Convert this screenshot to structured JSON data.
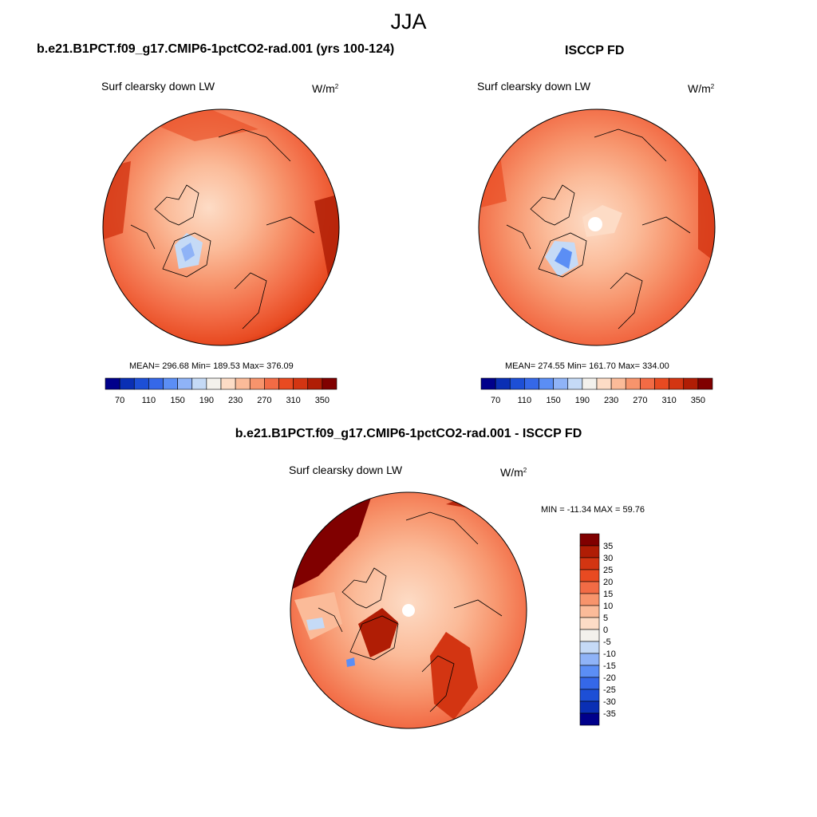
{
  "figure": {
    "season": "JJA",
    "variable": "Surf clearsky down LW",
    "units_base": "W/m",
    "units_exp": "2"
  },
  "panels": [
    {
      "title": "b.e21.B1PCT.f09_g17.CMIP6-1pctCO2-rad.001 (yrs 100-124)",
      "stats": "MEAN= 296.68  Min= 189.53  Max= 376.09",
      "mean": 296.68,
      "min": 189.53,
      "max": 376.09
    },
    {
      "title": "ISCCP FD",
      "stats": "MEAN= 274.55  Min= 161.70  Max= 334.00",
      "mean": 274.55,
      "min": 161.7,
      "max": 334.0
    },
    {
      "title": "b.e21.B1PCT.f09_g17.CMIP6-1pctCO2-rad.001 - ISCCP FD",
      "stats": "MIN = -11.34 MAX =  59.76",
      "min": -11.34,
      "max": 59.76
    }
  ],
  "colorbars": {
    "absolute": {
      "colors": [
        "#00008b",
        "#0a2fb4",
        "#1d4fd6",
        "#3568e8",
        "#5b8ef5",
        "#8fb3f7",
        "#c5daf6",
        "#f3f1ec",
        "#fddcc6",
        "#fbbb99",
        "#f7946c",
        "#f26b45",
        "#e84a21",
        "#d33512",
        "#b01d05",
        "#800000"
      ],
      "labels": [
        "70",
        "110",
        "150",
        "190",
        "230",
        "270",
        "310",
        "350"
      ]
    },
    "difference": {
      "colors": [
        "#800000",
        "#b01d05",
        "#d33512",
        "#e84a21",
        "#f26b45",
        "#f7946c",
        "#fbbb99",
        "#fddcc6",
        "#f3f1ec",
        "#c5daf6",
        "#8fb3f7",
        "#5b8ef5",
        "#3568e8",
        "#1d4fd6",
        "#0a2fb4",
        "#00008b"
      ],
      "labels": [
        "35",
        "30",
        "25",
        "20",
        "15",
        "10",
        "5",
        "0",
        "-5",
        "-10",
        "-15",
        "-20",
        "-25",
        "-30",
        "-35"
      ]
    }
  }
}
